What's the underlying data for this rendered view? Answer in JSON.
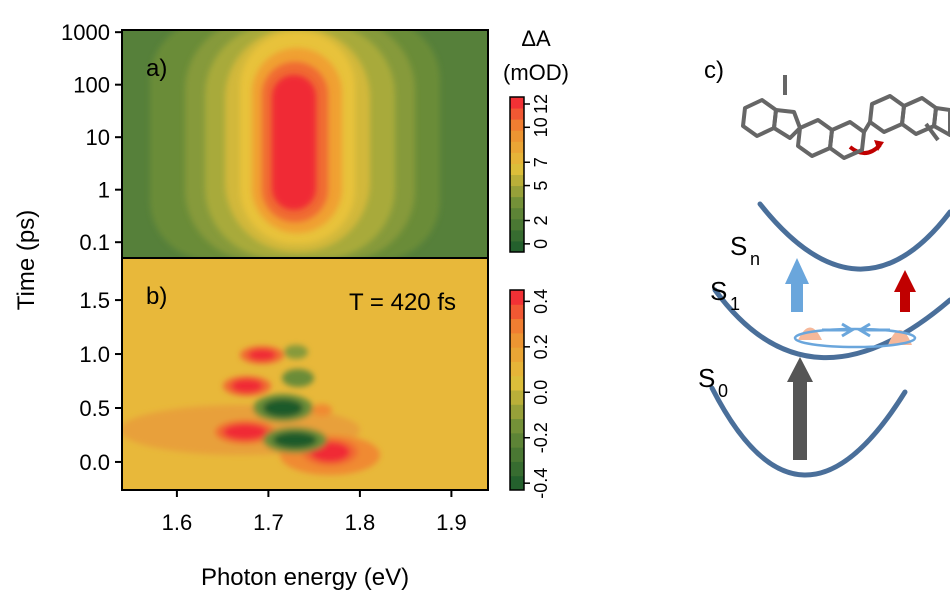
{
  "chart_data": [
    {
      "type": "heatmap",
      "panel_label": "a)",
      "y_scale": "log",
      "xlim": [
        1.54,
        1.94
      ],
      "ylim": [
        0.05,
        1100
      ],
      "yticks": [
        0.1,
        1,
        10,
        100,
        1000
      ],
      "colorbar": {
        "title": "ΔA",
        "unit": "(mOD)",
        "clim": [
          -0.7,
          12.6
        ],
        "ticks": [
          0,
          2,
          5,
          7,
          10,
          12
        ]
      }
    },
    {
      "type": "heatmap",
      "panel_label": "b)",
      "y_scale": "linear",
      "annotation": "T = 420 fs",
      "xlim": [
        1.54,
        1.94
      ],
      "ylim": [
        -0.26,
        1.89
      ],
      "yticks": [
        {
          "value": 0,
          "label": "0.0"
        },
        {
          "value": 0.5,
          "label": "0.5"
        },
        {
          "value": 1,
          "label": "1.0"
        },
        {
          "value": 1.5,
          "label": "1.5"
        }
      ],
      "xticks": [
        1.6,
        1.7,
        1.8,
        1.9
      ],
      "xlabel": "Photon energy (eV)",
      "ylabel": "Time (ps)",
      "colorbar": {
        "clim": [
          -0.43,
          0.45
        ],
        "ticks": [
          {
            "value": -0.4,
            "label": "-0.4"
          },
          {
            "value": -0.2,
            "label": "-0.2"
          },
          {
            "value": 0,
            "label": "0.0"
          },
          {
            "value": 0.2,
            "label": "0.2"
          },
          {
            "value": 0.4,
            "label": "0.4"
          }
        ]
      }
    }
  ],
  "diagram": {
    "panel_label": "c)",
    "levels": [
      {
        "main": "S",
        "sub": "n"
      },
      {
        "main": "S",
        "sub": "1"
      },
      {
        "main": "S",
        "sub": "0"
      }
    ]
  }
}
